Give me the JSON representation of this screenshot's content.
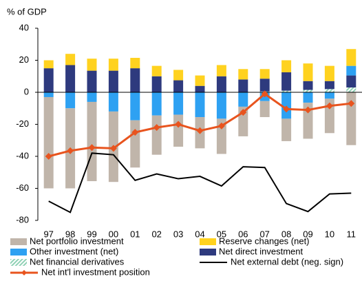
{
  "chart_data": {
    "type": "bar",
    "stacked": true,
    "ylabel": "% of GDP",
    "categories": [
      "97",
      "98",
      "99",
      "00",
      "01",
      "02",
      "03",
      "04",
      "05",
      "06",
      "07",
      "08",
      "09",
      "10",
      "11"
    ],
    "series": [
      {
        "name": "Net portfolio investment",
        "type": "bar",
        "color": "#c0b5aa",
        "values": [
          -57,
          -50,
          -49.5,
          -44,
          -29.5,
          -24.5,
          -20,
          -19.5,
          -22,
          -18.5,
          -10,
          -14,
          -22.5,
          -21.5,
          -33
        ]
      },
      {
        "name": "Reserve changes (net)",
        "type": "bar",
        "color": "#ffd21f",
        "values": [
          5,
          7,
          7.5,
          7.5,
          6.5,
          6.5,
          6.5,
          6.5,
          7,
          6.5,
          6,
          7.5,
          11,
          9.5,
          10.5
        ]
      },
      {
        "name": "Other investment (net)",
        "type": "bar",
        "color": "#2ea1f2",
        "values": [
          -3,
          -10,
          -6,
          -12,
          -17.5,
          -14.5,
          -14,
          -15.5,
          -16.5,
          -9,
          -5.5,
          -16.5,
          -6.5,
          -4,
          6
        ]
      },
      {
        "name": "Net direct investment",
        "type": "bar",
        "color": "#2e3a7e",
        "values": [
          15,
          17,
          13.5,
          13.5,
          15,
          10,
          7.5,
          4,
          10,
          8,
          8,
          11.5,
          5.5,
          5,
          7.5
        ]
      },
      {
        "name": "Net financial derivatives",
        "type": "bar",
        "color": "#8fd1b5",
        "hatch": true,
        "values": [
          0,
          0,
          0,
          0,
          0,
          0,
          0,
          0,
          0,
          0,
          0.5,
          1,
          1.5,
          2,
          3
        ]
      },
      {
        "name": "Net external debt (neg. sign)",
        "type": "line",
        "color": "#000000",
        "values": [
          -68,
          -75,
          -38,
          -39,
          -55,
          -51,
          -54,
          -52.5,
          -58.5,
          -46.5,
          -47,
          -69.5,
          -74.5,
          -63.5,
          -63
        ]
      },
      {
        "name": "Net int'l investment position",
        "type": "line",
        "marker": "diamond",
        "color": "#e8541e",
        "values": [
          -40,
          -36.5,
          -34.5,
          -35,
          -25,
          -22,
          -20,
          -24,
          -21,
          -12.5,
          -1,
          -10.5,
          -11,
          -8.5,
          -7
        ]
      }
    ],
    "ylim": [
      -80,
      40
    ],
    "yticks": [
      -80,
      -60,
      -40,
      -20,
      0,
      20,
      40
    ]
  }
}
